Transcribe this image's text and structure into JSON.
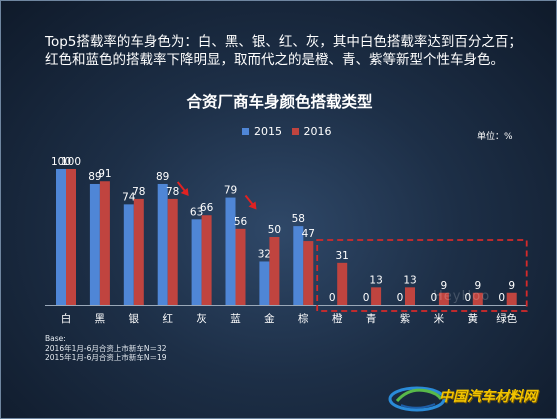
{
  "intro_text": "Top5搭载率的车身色为：白、黑、银、红、灰，其中白色搭载率达到百分之百；红色和蓝色的搭载率下降明显，取而代之的是橙、青、紫等新型个性车身色。",
  "unit_label": "单位：%",
  "base": {
    "label": "Base:",
    "line1": "2016年1月-6月合资上市新车N＝32",
    "line2": "2015年1月-6月合资上市新车N＝19"
  },
  "watermark_text": "HeyHoo",
  "logo_text": "中国汽车材料网",
  "colors": {
    "series_2015": "#4f86d6",
    "series_2016": "#c0443f",
    "highlight_box": "#d42a2a",
    "arrow": "#e02222"
  },
  "chart_data": {
    "type": "bar",
    "title": "合资厂商车身颜色搭载类型",
    "xlabel": "",
    "ylabel": "",
    "unit": "单位：%",
    "categories": [
      "白",
      "黑",
      "银",
      "红",
      "灰",
      "蓝",
      "金",
      "棕",
      "橙",
      "青",
      "紫",
      "米",
      "黄",
      "绿色"
    ],
    "series": [
      {
        "name": "2015",
        "values": [
          100,
          89,
          74,
          89,
          63,
          79,
          32,
          58,
          0,
          0,
          0,
          0,
          0,
          0
        ]
      },
      {
        "name": "2016",
        "values": [
          100,
          91,
          78,
          78,
          66,
          56,
          50,
          47,
          31,
          13,
          13,
          9,
          9,
          9
        ]
      }
    ],
    "ylim": [
      0,
      100
    ],
    "grid": false,
    "legend_position": "top-center",
    "annotations": [
      {
        "type": "arrow",
        "category": "红",
        "meaning": "decrease"
      },
      {
        "type": "arrow",
        "category": "蓝",
        "meaning": "decrease"
      },
      {
        "type": "dashed-box",
        "categories": [
          "橙",
          "青",
          "紫",
          "米",
          "黄",
          "绿色"
        ]
      }
    ]
  }
}
